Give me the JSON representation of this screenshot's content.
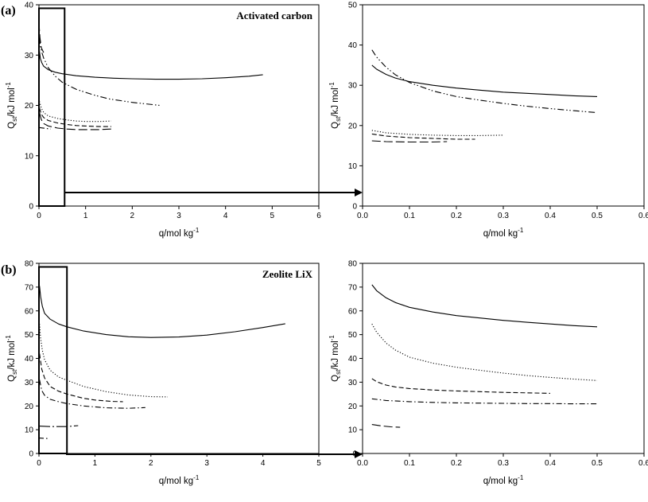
{
  "figure": {
    "panel_a_label": "(a)",
    "panel_b_label": "(b)"
  },
  "chart_data": [
    {
      "id": "a-main",
      "type": "line",
      "title": "Activated carbon",
      "xlabel": "q/mol kg",
      "xlabel_sup": "-1",
      "ylabel_pre": "Q",
      "ylabel_sub": "st",
      "ylabel_post": "/kJ mol",
      "ylabel_sup": "-1",
      "xlim": [
        0,
        6
      ],
      "ylim": [
        0,
        40
      ],
      "xticks": [
        "0",
        "1",
        "2",
        "3",
        "4",
        "5",
        "6"
      ],
      "yticks": [
        "0",
        "10",
        "20",
        "30",
        "40"
      ],
      "zoom_box": {
        "x0": 0,
        "x1": 0.55,
        "y0": 0,
        "y1": 39.3
      },
      "series": [
        {
          "name": "solid",
          "style": "solid",
          "x": [
            0.01,
            0.03,
            0.06,
            0.1,
            0.2,
            0.35,
            0.5,
            0.8,
            1.2,
            1.6,
            2.0,
            2.5,
            3.0,
            3.5,
            4.0,
            4.5,
            4.8
          ],
          "y": [
            30.8,
            29.3,
            28.5,
            27.8,
            27.1,
            26.6,
            26.3,
            25.9,
            25.6,
            25.4,
            25.3,
            25.2,
            25.2,
            25.3,
            25.5,
            25.8,
            26.1
          ]
        },
        {
          "name": "dash-dot-dot",
          "style": "dashdotdot",
          "x": [
            0.01,
            0.03,
            0.06,
            0.1,
            0.2,
            0.35,
            0.5,
            0.8,
            1.0,
            1.2,
            1.5,
            2.0,
            2.5,
            2.6
          ],
          "y": [
            33.5,
            31.8,
            30.6,
            29.4,
            27.5,
            25.8,
            24.6,
            23.2,
            22.6,
            22.0,
            21.3,
            20.6,
            20.1,
            20.0
          ]
        },
        {
          "name": "long dash top",
          "style": "longdash",
          "x": [
            0.0,
            0.02,
            0.05,
            0.1
          ],
          "y": [
            36.5,
            33.5,
            31.5,
            30.5
          ]
        },
        {
          "name": "dotted",
          "style": "dotted",
          "x": [
            0.01,
            0.05,
            0.1,
            0.2,
            0.4,
            0.6,
            0.8,
            1.0,
            1.3,
            1.55
          ],
          "y": [
            20.8,
            19.5,
            18.6,
            17.9,
            17.4,
            17.1,
            16.9,
            16.8,
            16.8,
            16.9
          ]
        },
        {
          "name": "dashed",
          "style": "dashed",
          "x": [
            0.01,
            0.05,
            0.1,
            0.2,
            0.4,
            0.6,
            0.8,
            1.0,
            1.3,
            1.55
          ],
          "y": [
            19.5,
            18.3,
            17.6,
            17.0,
            16.5,
            16.2,
            16.0,
            15.9,
            15.8,
            15.8
          ]
        },
        {
          "name": "long dashed",
          "style": "longdash",
          "x": [
            0.01,
            0.05,
            0.1,
            0.2,
            0.4,
            0.6,
            0.8,
            1.0,
            1.3,
            1.55
          ],
          "y": [
            18.6,
            17.2,
            16.4,
            15.9,
            15.5,
            15.3,
            15.2,
            15.2,
            15.2,
            15.3
          ]
        },
        {
          "name": "short dash-dot",
          "style": "dashdot",
          "x": [
            0.0,
            0.25
          ],
          "y": [
            15.6,
            15.3
          ]
        }
      ]
    },
    {
      "id": "a-zoom",
      "type": "line",
      "title": "",
      "xlabel": "q/mol kg",
      "xlabel_sup": "-1",
      "ylabel_pre": "Q",
      "ylabel_sub": "st",
      "ylabel_post": "/kJ mol",
      "ylabel_sup": "-1",
      "xlim": [
        0,
        0.6
      ],
      "ylim": [
        0,
        50
      ],
      "xticks": [
        "0.0",
        "0.1",
        "0.2",
        "0.3",
        "0.4",
        "0.5",
        "0.6"
      ],
      "yticks": [
        "0",
        "10",
        "20",
        "30",
        "40",
        "50"
      ],
      "series": [
        {
          "name": "solid",
          "style": "solid",
          "x": [
            0.02,
            0.03,
            0.05,
            0.07,
            0.1,
            0.15,
            0.2,
            0.25,
            0.3,
            0.35,
            0.4,
            0.45,
            0.5
          ],
          "y": [
            35.0,
            34.0,
            32.7,
            31.8,
            30.9,
            30.0,
            29.3,
            28.8,
            28.3,
            28.0,
            27.7,
            27.4,
            27.2
          ]
        },
        {
          "name": "dash-dot-dot",
          "style": "dashdotdot",
          "x": [
            0.02,
            0.03,
            0.05,
            0.07,
            0.1,
            0.15,
            0.2,
            0.25,
            0.3,
            0.35,
            0.4,
            0.45,
            0.5
          ],
          "y": [
            38.8,
            37.0,
            34.5,
            32.6,
            30.7,
            28.6,
            27.2,
            26.3,
            25.5,
            24.8,
            24.2,
            23.7,
            23.2
          ]
        },
        {
          "name": "dotted",
          "style": "dotted",
          "x": [
            0.02,
            0.05,
            0.1,
            0.15,
            0.2,
            0.25,
            0.3
          ],
          "y": [
            18.8,
            18.2,
            17.8,
            17.6,
            17.5,
            17.5,
            17.6
          ]
        },
        {
          "name": "dashed",
          "style": "dashed",
          "x": [
            0.02,
            0.05,
            0.1,
            0.15,
            0.2,
            0.24
          ],
          "y": [
            17.9,
            17.4,
            17.0,
            16.8,
            16.6,
            16.6
          ]
        },
        {
          "name": "long dashed",
          "style": "longdash",
          "x": [
            0.02,
            0.05,
            0.1,
            0.15,
            0.18
          ],
          "y": [
            16.2,
            16.0,
            15.9,
            15.9,
            16.0
          ]
        }
      ]
    },
    {
      "id": "b-main",
      "type": "line",
      "title": "Zeolite LiX",
      "xlabel": "q/mol kg",
      "xlabel_sup": "-1",
      "ylabel_pre": "Q",
      "ylabel_sub": "st",
      "ylabel_post": "/kJ mol",
      "ylabel_sup": "-1",
      "xlim": [
        0,
        5
      ],
      "ylim": [
        0,
        80
      ],
      "xticks": [
        "0",
        "1",
        "2",
        "3",
        "4",
        "5"
      ],
      "yticks": [
        "0",
        "10",
        "20",
        "30",
        "40",
        "50",
        "60",
        "70",
        "80"
      ],
      "zoom_box": {
        "x0": 0,
        "x1": 0.5,
        "y0": 0,
        "y1": 78.5
      },
      "series": [
        {
          "name": "solid",
          "style": "solid",
          "x": [
            0.01,
            0.03,
            0.06,
            0.1,
            0.2,
            0.35,
            0.5,
            0.8,
            1.2,
            1.6,
            2.0,
            2.5,
            3.0,
            3.5,
            4.0,
            4.4
          ],
          "y": [
            70.5,
            66.0,
            62.0,
            59.0,
            56.5,
            54.5,
            53.3,
            51.5,
            50.0,
            49.1,
            48.8,
            49.0,
            49.8,
            51.2,
            53.0,
            54.6
          ]
        },
        {
          "name": "dotted",
          "style": "dotted",
          "x": [
            0.01,
            0.03,
            0.06,
            0.1,
            0.2,
            0.35,
            0.5,
            0.8,
            1.2,
            1.6,
            2.0,
            2.3
          ],
          "y": [
            54.5,
            48.5,
            43.5,
            39.5,
            35.0,
            32.2,
            30.8,
            28.2,
            26.0,
            24.6,
            23.9,
            23.8
          ]
        },
        {
          "name": "dashed",
          "style": "dashed",
          "x": [
            0.01,
            0.05,
            0.1,
            0.2,
            0.35,
            0.5,
            0.8,
            1.0,
            1.3,
            1.5
          ],
          "y": [
            42.0,
            35.5,
            31.8,
            28.2,
            26.2,
            25.0,
            23.2,
            22.5,
            21.9,
            21.8
          ]
        },
        {
          "name": "dash-dot",
          "style": "dashdot",
          "x": [
            0.01,
            0.05,
            0.1,
            0.2,
            0.35,
            0.5,
            0.8,
            1.2,
            1.6,
            1.9
          ],
          "y": [
            31.0,
            26.5,
            24.5,
            22.8,
            21.8,
            21.0,
            20.0,
            19.2,
            19.0,
            19.3
          ]
        },
        {
          "name": "long dash-dot",
          "style": "longdashdot",
          "x": [
            0.0,
            0.2,
            0.5,
            0.7
          ],
          "y": [
            11.5,
            11.3,
            11.3,
            11.7
          ]
        },
        {
          "name": "short dashed",
          "style": "dashed",
          "x": [
            0.0,
            0.15
          ],
          "y": [
            6.5,
            6.3
          ]
        }
      ]
    },
    {
      "id": "b-zoom",
      "type": "line",
      "title": "",
      "xlabel": "q/mol kg",
      "xlabel_sup": "-1",
      "ylabel_pre": "Q",
      "ylabel_sub": "st",
      "ylabel_post": "/kJ mol",
      "ylabel_sup": "-1",
      "xlim": [
        0,
        0.6
      ],
      "ylim": [
        0,
        80
      ],
      "xticks": [
        "0.0",
        "0.1",
        "0.2",
        "0.3",
        "0.4",
        "0.5",
        "0.6"
      ],
      "yticks": [
        "0",
        "10",
        "20",
        "30",
        "40",
        "50",
        "60",
        "70",
        "80"
      ],
      "series": [
        {
          "name": "solid",
          "style": "solid",
          "x": [
            0.02,
            0.03,
            0.05,
            0.07,
            0.1,
            0.15,
            0.2,
            0.25,
            0.3,
            0.35,
            0.4,
            0.45,
            0.5
          ],
          "y": [
            71.0,
            68.5,
            65.5,
            63.5,
            61.5,
            59.5,
            58.0,
            57.0,
            56.0,
            55.2,
            54.5,
            53.8,
            53.3
          ]
        },
        {
          "name": "dotted",
          "style": "dotted",
          "x": [
            0.02,
            0.03,
            0.05,
            0.07,
            0.1,
            0.15,
            0.2,
            0.25,
            0.3,
            0.35,
            0.4,
            0.45,
            0.5
          ],
          "y": [
            54.5,
            51.0,
            46.5,
            43.5,
            40.5,
            38.0,
            36.3,
            35.0,
            33.8,
            32.8,
            32.0,
            31.3,
            30.7
          ]
        },
        {
          "name": "dashed",
          "style": "dashed",
          "x": [
            0.02,
            0.03,
            0.05,
            0.07,
            0.1,
            0.15,
            0.2,
            0.25,
            0.3,
            0.35,
            0.4
          ],
          "y": [
            31.5,
            30.2,
            28.8,
            28.0,
            27.3,
            26.7,
            26.3,
            26.0,
            25.7,
            25.5,
            25.3
          ]
        },
        {
          "name": "dash-dot",
          "style": "dashdot",
          "x": [
            0.02,
            0.05,
            0.1,
            0.15,
            0.2,
            0.25,
            0.3,
            0.35,
            0.4,
            0.45,
            0.5
          ],
          "y": [
            23.0,
            22.3,
            21.8,
            21.5,
            21.3,
            21.2,
            21.1,
            21.0,
            21.0,
            20.9,
            20.9
          ]
        },
        {
          "name": "long dashed",
          "style": "longdash",
          "x": [
            0.02,
            0.04,
            0.06,
            0.08
          ],
          "y": [
            12.2,
            11.6,
            11.2,
            11.0
          ]
        }
      ]
    }
  ]
}
